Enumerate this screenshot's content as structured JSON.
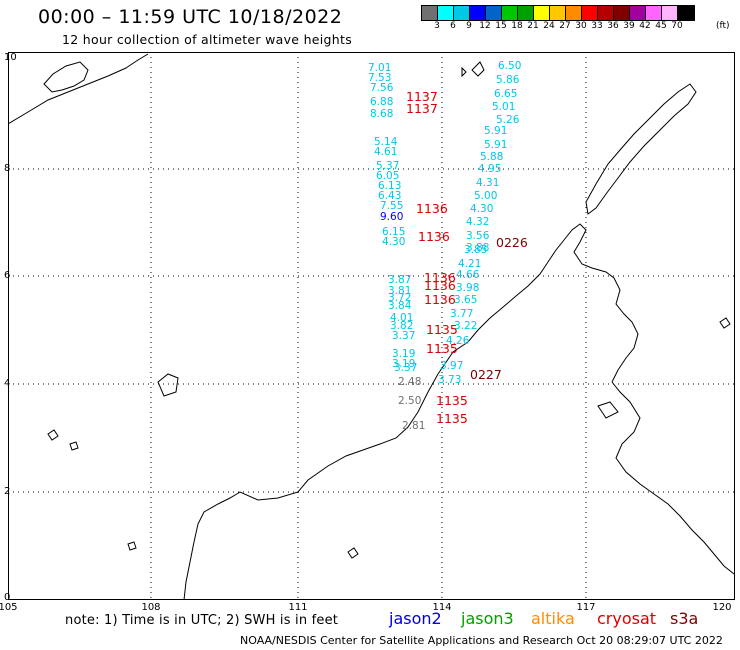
{
  "title": "00:00 – 11:59 UTC 10/18/2022",
  "subtitle": "12 hour collection of altimeter wave heights",
  "scale": {
    "colors": [
      "#707070",
      "#00ffff",
      "#00c8e6",
      "#0000ff",
      "#0064c8",
      "#00c800",
      "#00a000",
      "#ffff00",
      "#ffc800",
      "#ff8c00",
      "#ff0000",
      "#b40000",
      "#800000",
      "#a000a0",
      "#ff66ff",
      "#ffb4ff",
      "#000000"
    ],
    "ticks": [
      "3",
      "6",
      "9",
      "12",
      "15",
      "18",
      "21",
      "24",
      "27",
      "30",
      "33",
      "36",
      "39",
      "42",
      "45",
      "70"
    ],
    "unit": "(ft)"
  },
  "axes": {
    "x_ticks": [
      "105",
      "108",
      "111",
      "114",
      "117",
      "120"
    ],
    "y_ticks": [
      "10",
      "8",
      "6",
      "4",
      "2",
      "0"
    ]
  },
  "note": "note:  1) Time is in UTC;  2) SWH is in feet",
  "satellites": [
    {
      "name": "jason2",
      "color": "#0000dd"
    },
    {
      "name": "jason3",
      "color": "#00a000"
    },
    {
      "name": "altika",
      "color": "#ff8c00"
    },
    {
      "name": "cryosat",
      "color": "#dd0000"
    },
    {
      "name": "s3a",
      "color": "#800000"
    }
  ],
  "footer": "NOAA/NESDIS Center for Satellite Applications and Research    Oct 20 08:29:07 UTC 2022",
  "wave_heights": [
    {
      "v": "7.01",
      "c": "#00c8e6"
    },
    {
      "v": "7.53",
      "c": "#00c8e6"
    },
    {
      "v": "7.56",
      "c": "#00c8e6"
    },
    {
      "v": "6.88",
      "c": "#00c8e6"
    },
    {
      "v": "8.68",
      "c": "#00c8e6"
    },
    {
      "v": "5.14",
      "c": "#00c8e6"
    },
    {
      "v": "4.61",
      "c": "#00c8e6"
    },
    {
      "v": "5.37",
      "c": "#00c8e6"
    },
    {
      "v": "6.05",
      "c": "#00c8e6"
    },
    {
      "v": "6.13",
      "c": "#00c8e6"
    },
    {
      "v": "6.43",
      "c": "#00c8e6"
    },
    {
      "v": "7.55",
      "c": "#00c8e6"
    },
    {
      "v": "9.60",
      "c": "#0000ff"
    },
    {
      "v": "6.15",
      "c": "#00c8e6"
    },
    {
      "v": "4.30",
      "c": "#00c8e6"
    },
    {
      "v": "6.50",
      "c": "#00c8e6"
    },
    {
      "v": "5.86",
      "c": "#00c8e6"
    },
    {
      "v": "6.65",
      "c": "#00c8e6"
    },
    {
      "v": "5.01",
      "c": "#00c8e6"
    },
    {
      "v": "5.26",
      "c": "#00c8e6"
    },
    {
      "v": "5.91",
      "c": "#00c8e6"
    },
    {
      "v": "5.91",
      "c": "#00c8e6"
    },
    {
      "v": "5.88",
      "c": "#00c8e6"
    },
    {
      "v": "4.95",
      "c": "#00c8e6"
    },
    {
      "v": "4.31",
      "c": "#00c8e6"
    },
    {
      "v": "5.00",
      "c": "#00c8e6"
    },
    {
      "v": "4.30",
      "c": "#00c8e6"
    },
    {
      "v": "4.32",
      "c": "#00c8e6"
    },
    {
      "v": "3.56",
      "c": "#00c8e6"
    },
    {
      "v": "3.88",
      "c": "#00c8e6"
    },
    {
      "v": "3.85",
      "c": "#00c8e6"
    },
    {
      "v": "4.21",
      "c": "#00c8e6"
    },
    {
      "v": "4.66",
      "c": "#00c8e6"
    },
    {
      "v": "3.87",
      "c": "#00c8e6"
    },
    {
      "v": "3.81",
      "c": "#00c8e6"
    },
    {
      "v": "3.72",
      "c": "#00c8e6"
    },
    {
      "v": "3.84",
      "c": "#00c8e6"
    },
    {
      "v": "3.98",
      "c": "#00c8e6"
    },
    {
      "v": "3.65",
      "c": "#00c8e6"
    },
    {
      "v": "3.77",
      "c": "#00c8e6"
    },
    {
      "v": "4.01",
      "c": "#00c8e6"
    },
    {
      "v": "3.82",
      "c": "#00c8e6"
    },
    {
      "v": "3.37",
      "c": "#00c8e6"
    },
    {
      "v": "3.22",
      "c": "#00c8e6"
    },
    {
      "v": "4.26",
      "c": "#00c8e6"
    },
    {
      "v": "3.19",
      "c": "#00c8e6"
    },
    {
      "v": "3.19",
      "c": "#00c8e6"
    },
    {
      "v": "3.37",
      "c": "#00c8e6"
    },
    {
      "v": "3.97",
      "c": "#00c8e6"
    },
    {
      "v": "3.73",
      "c": "#00c8e6"
    },
    {
      "v": "2.48",
      "c": "#707070"
    },
    {
      "v": "2.50",
      "c": "#707070"
    },
    {
      "v": "2.81",
      "c": "#707070"
    }
  ],
  "pass_times": [
    {
      "t": "1137",
      "c": "#dd0000"
    },
    {
      "t": "1137",
      "c": "#dd0000"
    },
    {
      "t": "1136",
      "c": "#dd0000"
    },
    {
      "t": "1136",
      "c": "#dd0000"
    },
    {
      "t": "0226",
      "c": "#800000"
    },
    {
      "t": "1136",
      "c": "#dd0000"
    },
    {
      "t": "1136",
      "c": "#dd0000"
    },
    {
      "t": "1136",
      "c": "#dd0000"
    },
    {
      "t": "1135",
      "c": "#dd0000"
    },
    {
      "t": "1135",
      "c": "#dd0000"
    },
    {
      "t": "0227",
      "c": "#800000"
    },
    {
      "t": "1135",
      "c": "#dd0000"
    },
    {
      "t": "1135",
      "c": "#dd0000"
    }
  ]
}
